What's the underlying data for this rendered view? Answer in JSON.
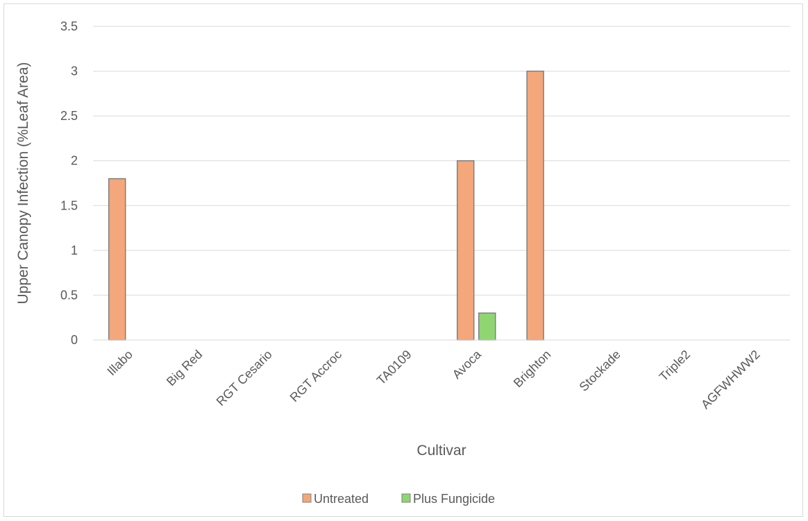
{
  "chart_data": {
    "type": "bar",
    "title": "",
    "xlabel": "Cultivar",
    "ylabel": "Upper Canopy Infection (%Leaf Area)",
    "ylim": [
      0,
      3.5
    ],
    "yticks": [
      "0",
      "0.5",
      "1",
      "1.5",
      "2",
      "2.5",
      "3",
      "3.5"
    ],
    "grid": true,
    "legend_position": "bottom",
    "categories": [
      "Illabo",
      "Big Red",
      "RGT Cesario",
      "RGT Accroc",
      "TA0109",
      "Avoca",
      "Brighton",
      "Stockade",
      "Triple2",
      "AGFWHWW2"
    ],
    "series": [
      {
        "name": "Untreated",
        "color": "#f4a77a",
        "values": [
          1.8,
          0,
          0,
          0,
          0,
          2.0,
          3.0,
          0,
          0,
          0
        ]
      },
      {
        "name": "Plus Fungicide",
        "color": "#8fd672",
        "values": [
          0,
          0,
          0,
          0,
          0,
          0.3,
          0,
          0,
          0,
          0
        ]
      }
    ]
  }
}
